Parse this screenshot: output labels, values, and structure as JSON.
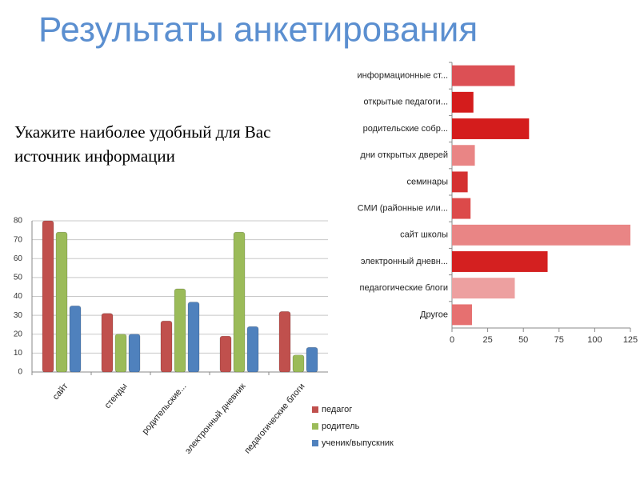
{
  "title": "Результаты анкетирования",
  "question": "Укажите наиболее удобный для Вас источник информации",
  "chart_data": [
    {
      "type": "bar",
      "categories": [
        "сайт",
        "стенды",
        "родительские...",
        "электронный дневник",
        "педагогические блоги"
      ],
      "series": [
        {
          "name": "педагог",
          "color": "#c0504d",
          "values": [
            80,
            31,
            27,
            19,
            32
          ]
        },
        {
          "name": "родитель",
          "color": "#9bbb59",
          "values": [
            74,
            20,
            44,
            74,
            9
          ]
        },
        {
          "name": "ученик/выпускник",
          "color": "#4f81bd",
          "values": [
            35,
            20,
            37,
            24,
            13
          ]
        }
      ],
      "ylim": [
        0,
        80
      ],
      "yticks": [
        0,
        10,
        20,
        30,
        40,
        50,
        60,
        70,
        80
      ],
      "grid": true,
      "legend": "bottom-right"
    },
    {
      "type": "barh",
      "categories": [
        "информационные ст...",
        "открытые педагоги...",
        "родительские собр...",
        "дни открытых дверей",
        "семинары",
        "СМИ (районные или...",
        "сайт школы",
        "электронный дневн...",
        "педагогические блоги",
        "Другое"
      ],
      "values": [
        44,
        15,
        54,
        16,
        11,
        13,
        125,
        67,
        44,
        14
      ],
      "colors": [
        "#dc5055",
        "#d41c1c",
        "#d41c1c",
        "#e98585",
        "#d43030",
        "#dc4a4a",
        "#e98585",
        "#d42020",
        "#eda0a0",
        "#e67070"
      ],
      "xlim": [
        0,
        125
      ],
      "xticks": [
        0,
        25,
        50,
        75,
        100,
        125
      ]
    }
  ]
}
